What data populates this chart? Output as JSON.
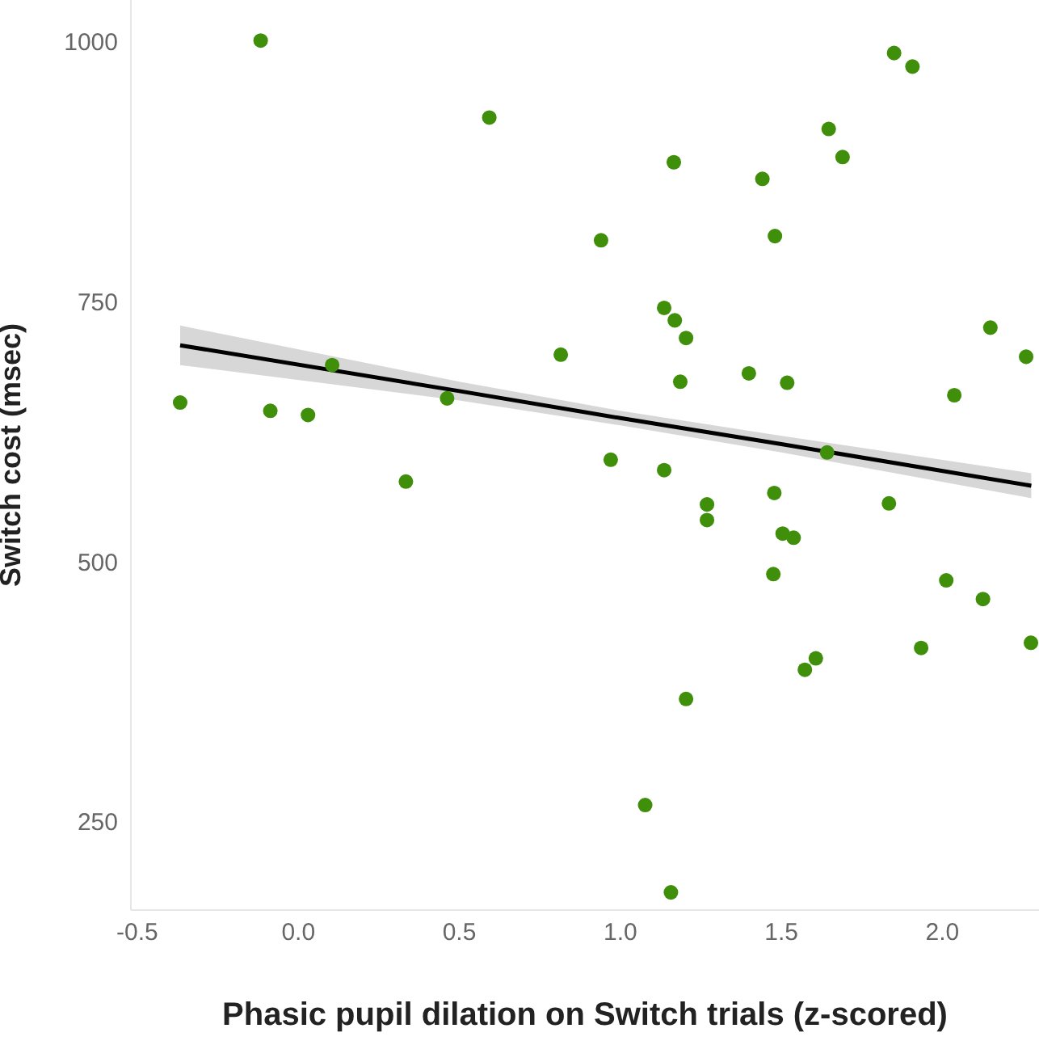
{
  "chart_data": {
    "type": "scatter",
    "xlabel": "Phasic pupil dilation on Switch trials (z-scored)",
    "ylabel": "Switch cost (msec)",
    "xlim": [
      -0.52,
      2.3
    ],
    "xticks": [
      {
        "value": -0.5,
        "label": "-0.5"
      },
      {
        "value": 0,
        "label": "0.0"
      },
      {
        "value": 0.5,
        "label": "0.5"
      },
      {
        "value": 1,
        "label": "1.0"
      },
      {
        "value": 1.5,
        "label": "1.5"
      },
      {
        "value": 2,
        "label": "2.0"
      }
    ],
    "ylim": [
      165,
      1040
    ],
    "yticks": [
      250,
      500,
      750,
      1000
    ],
    "series": [
      {
        "marker": "circle",
        "color": "#3f8f0a",
        "x": [
          -0.117,
          0.593,
          0.815,
          -0.367,
          -0.087,
          0.03,
          0.105,
          0.462,
          0.334,
          1.85,
          1.907,
          1.647,
          1.69,
          1.166,
          1.441,
          1.48,
          0.94,
          1.136,
          1.169,
          1.204,
          2.149,
          2.26,
          1.186,
          1.399,
          1.518,
          2.037,
          1.642,
          0.97,
          1.136,
          1.478,
          1.269,
          1.834,
          1.269,
          1.504,
          1.538,
          1.475,
          2.012,
          2.126,
          1.934,
          2.275,
          1.607,
          1.573,
          1.204,
          1.077,
          1.157
        ],
        "values": [
          1001,
          927,
          699,
          653,
          645,
          641,
          689,
          657,
          577,
          989,
          976,
          916,
          889,
          884,
          868,
          813,
          809,
          744,
          732,
          715,
          725,
          697,
          673,
          681,
          672,
          660,
          605,
          598,
          588,
          566,
          555,
          556,
          540,
          527,
          523,
          488,
          482,
          464,
          417,
          422,
          407,
          396,
          368,
          266,
          182
        ]
      },
      {
        "type": "line",
        "color": "#000000",
        "x": [
          -0.367,
          0.5,
          1.0,
          1.5,
          2.276
        ],
        "values": [
          708,
          664,
          638,
          613,
          573
        ],
        "lower": [
          689,
          655,
          631,
          605,
          561
        ],
        "upper": [
          727,
          673,
          645,
          621,
          585
        ]
      }
    ]
  }
}
